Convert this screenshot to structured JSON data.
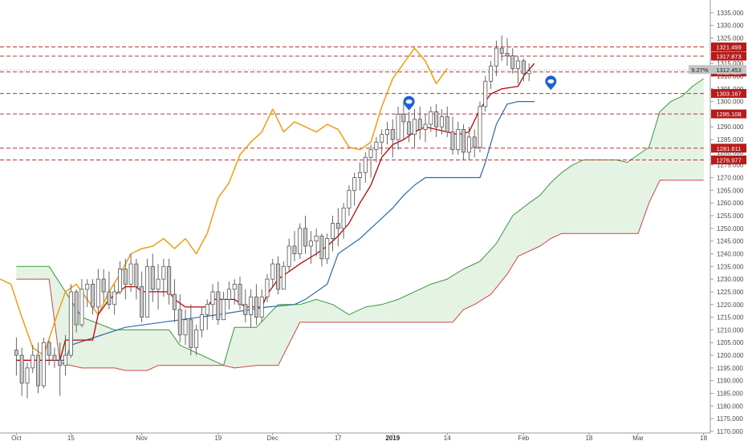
{
  "chart_data": {
    "type": "candlestick",
    "title": "",
    "ylim": [
      1170,
      1340
    ],
    "yticks": [
      1170,
      1175,
      1180,
      1185,
      1190,
      1195,
      1200,
      1205,
      1210,
      1215,
      1220,
      1225,
      1230,
      1235,
      1240,
      1245,
      1250,
      1255,
      1260,
      1265,
      1270,
      1275,
      1280,
      1285,
      1290,
      1295,
      1300,
      1305,
      1310,
      1315,
      1320,
      1325,
      1330,
      1335
    ],
    "ytick_labels": [
      "1170.000",
      "1175.000",
      "1180.000",
      "1185.000",
      "1190.000",
      "1195.000",
      "1200.000",
      "1205.000",
      "1210.000",
      "1215.000",
      "1220.000",
      "1225.000",
      "1230.000",
      "1235.000",
      "1240.000",
      "1245.000",
      "1250.000",
      "1255.000",
      "1260.000",
      "1265.000",
      "1270.000",
      "1275.000",
      "1280.000",
      "1285.000",
      "1290.000",
      "1295.000",
      "1300.000",
      "1305.000",
      "1310.000",
      "1315.000",
      "1320.000",
      "1325.000",
      "1330.000",
      "1335.000"
    ],
    "x_labels": [
      {
        "label": "Oct",
        "index": 0,
        "bold": false
      },
      {
        "label": "15",
        "index": 10,
        "bold": false
      },
      {
        "label": "Nov",
        "index": 23,
        "bold": false
      },
      {
        "label": "19",
        "index": 37,
        "bold": false
      },
      {
        "label": "Dec",
        "index": 47,
        "bold": false
      },
      {
        "label": "17",
        "index": 59,
        "bold": false
      },
      {
        "label": "2019",
        "index": 69,
        "bold": true
      },
      {
        "label": "14",
        "index": 79,
        "bold": false
      },
      {
        "label": "Feb",
        "index": 93,
        "bold": false
      },
      {
        "label": "18",
        "index": 105,
        "bold": false
      },
      {
        "label": "Mar",
        "index": 114,
        "bold": false
      },
      {
        "label": "18",
        "index": 126,
        "bold": false
      }
    ],
    "x_index_range": [
      -3,
      126.5
    ],
    "candles": [
      [
        1202,
        1207,
        1192,
        1200
      ],
      [
        1200,
        1203,
        1184,
        1189
      ],
      [
        1189,
        1197,
        1183,
        1195
      ],
      [
        1195,
        1204,
        1193,
        1200
      ],
      [
        1200,
        1205,
        1185,
        1188
      ],
      [
        1188,
        1207,
        1187,
        1205
      ],
      [
        1205,
        1206,
        1196,
        1200
      ],
      [
        1200,
        1203,
        1195,
        1198
      ],
      [
        1198,
        1205,
        1184,
        1196
      ],
      [
        1196,
        1208,
        1192,
        1200
      ],
      [
        1200,
        1228,
        1199,
        1225
      ],
      [
        1225,
        1226,
        1209,
        1212
      ],
      [
        1212,
        1230,
        1211,
        1226
      ],
      [
        1226,
        1230,
        1219,
        1228
      ],
      [
        1228,
        1230,
        1216,
        1219
      ],
      [
        1219,
        1234,
        1216,
        1230
      ],
      [
        1230,
        1234,
        1221,
        1225
      ],
      [
        1225,
        1233,
        1218,
        1220
      ],
      [
        1220,
        1228,
        1216,
        1225
      ],
      [
        1225,
        1237,
        1224,
        1234
      ],
      [
        1234,
        1238,
        1222,
        1228
      ],
      [
        1228,
        1240,
        1225,
        1236
      ],
      [
        1236,
        1238,
        1222,
        1227
      ],
      [
        1227,
        1233,
        1213,
        1215
      ],
      [
        1215,
        1238,
        1215,
        1235
      ],
      [
        1235,
        1240,
        1221,
        1226
      ],
      [
        1226,
        1236,
        1218,
        1230
      ],
      [
        1230,
        1238,
        1223,
        1235
      ],
      [
        1235,
        1238,
        1220,
        1224
      ],
      [
        1224,
        1230,
        1213,
        1218
      ],
      [
        1218,
        1224,
        1205,
        1208
      ],
      [
        1208,
        1218,
        1204,
        1214
      ],
      [
        1214,
        1220,
        1200,
        1203
      ],
      [
        1203,
        1212,
        1200,
        1210
      ],
      [
        1210,
        1219,
        1207,
        1216
      ],
      [
        1216,
        1222,
        1210,
        1220
      ],
      [
        1220,
        1228,
        1214,
        1225
      ],
      [
        1225,
        1229,
        1212,
        1214
      ],
      [
        1214,
        1225,
        1214,
        1222
      ],
      [
        1222,
        1229,
        1218,
        1226
      ],
      [
        1226,
        1230,
        1220,
        1228
      ],
      [
        1228,
        1231,
        1218,
        1220
      ],
      [
        1220,
        1226,
        1213,
        1216
      ],
      [
        1216,
        1226,
        1211,
        1223
      ],
      [
        1223,
        1228,
        1212,
        1215
      ],
      [
        1215,
        1226,
        1213,
        1223
      ],
      [
        1223,
        1232,
        1221,
        1230
      ],
      [
        1230,
        1238,
        1227,
        1236
      ],
      [
        1236,
        1239,
        1224,
        1226
      ],
      [
        1226,
        1237,
        1226,
        1235
      ],
      [
        1235,
        1246,
        1233,
        1243
      ],
      [
        1243,
        1249,
        1237,
        1240
      ],
      [
        1240,
        1252,
        1238,
        1250
      ],
      [
        1250,
        1255,
        1240,
        1243
      ],
      [
        1243,
        1249,
        1236,
        1245
      ],
      [
        1245,
        1250,
        1239,
        1247
      ],
      [
        1247,
        1248,
        1235,
        1238
      ],
      [
        1238,
        1248,
        1236,
        1246
      ],
      [
        1246,
        1255,
        1241,
        1252
      ],
      [
        1252,
        1258,
        1243,
        1250
      ],
      [
        1250,
        1260,
        1246,
        1258
      ],
      [
        1258,
        1267,
        1255,
        1265
      ],
      [
        1265,
        1272,
        1259,
        1270
      ],
      [
        1270,
        1276,
        1265,
        1272
      ],
      [
        1272,
        1280,
        1268,
        1278
      ],
      [
        1278,
        1283,
        1270,
        1281
      ],
      [
        1281,
        1286,
        1276,
        1284
      ],
      [
        1284,
        1289,
        1279,
        1287
      ],
      [
        1287,
        1292,
        1283,
        1289
      ],
      [
        1289,
        1293,
        1278,
        1285
      ],
      [
        1285,
        1298,
        1281,
        1295
      ],
      [
        1295,
        1300,
        1285,
        1292
      ],
      [
        1292,
        1296,
        1284,
        1287
      ],
      [
        1287,
        1297,
        1282,
        1293
      ],
      [
        1293,
        1298,
        1285,
        1289
      ],
      [
        1289,
        1295,
        1284,
        1291
      ],
      [
        1291,
        1298,
        1288,
        1296
      ],
      [
        1296,
        1299,
        1286,
        1290
      ],
      [
        1290,
        1297,
        1287,
        1294
      ],
      [
        1294,
        1298,
        1286,
        1288
      ],
      [
        1288,
        1294,
        1279,
        1281
      ],
      [
        1281,
        1292,
        1279,
        1289
      ],
      [
        1289,
        1291,
        1277,
        1280
      ],
      [
        1280,
        1290,
        1277,
        1286
      ],
      [
        1286,
        1289,
        1278,
        1282
      ],
      [
        1282,
        1300,
        1280,
        1298
      ],
      [
        1298,
        1310,
        1296,
        1308
      ],
      [
        1308,
        1316,
        1305,
        1314
      ],
      [
        1314,
        1324,
        1310,
        1321
      ],
      [
        1321,
        1326,
        1316,
        1319
      ],
      [
        1319,
        1325,
        1314,
        1318
      ],
      [
        1318,
        1321,
        1311,
        1313
      ],
      [
        1313,
        1318,
        1307,
        1316
      ],
      [
        1316,
        1317,
        1308,
        1311
      ],
      [
        1311,
        1315,
        1308,
        1312
      ]
    ],
    "tenkan": [
      {
        "x": 0,
        "y": 1198
      },
      {
        "x": 8,
        "y": 1198
      },
      {
        "x": 9,
        "y": 1206
      },
      {
        "x": 14,
        "y": 1206
      },
      {
        "x": 15,
        "y": 1216
      },
      {
        "x": 17,
        "y": 1222
      },
      {
        "x": 20,
        "y": 1227
      },
      {
        "x": 22,
        "y": 1227
      },
      {
        "x": 23,
        "y": 1225
      },
      {
        "x": 28,
        "y": 1225
      },
      {
        "x": 29,
        "y": 1222
      },
      {
        "x": 31,
        "y": 1219
      },
      {
        "x": 35,
        "y": 1219
      },
      {
        "x": 36,
        "y": 1222
      },
      {
        "x": 40,
        "y": 1222
      },
      {
        "x": 42,
        "y": 1219
      },
      {
        "x": 45,
        "y": 1219
      },
      {
        "x": 46,
        "y": 1224
      },
      {
        "x": 48,
        "y": 1230
      },
      {
        "x": 50,
        "y": 1233
      },
      {
        "x": 52,
        "y": 1236
      },
      {
        "x": 55,
        "y": 1240
      },
      {
        "x": 57,
        "y": 1243
      },
      {
        "x": 59,
        "y": 1247
      },
      {
        "x": 61,
        "y": 1252
      },
      {
        "x": 63,
        "y": 1260
      },
      {
        "x": 65,
        "y": 1267
      },
      {
        "x": 67,
        "y": 1278
      },
      {
        "x": 69,
        "y": 1283
      },
      {
        "x": 71,
        "y": 1285
      },
      {
        "x": 73,
        "y": 1288
      },
      {
        "x": 75,
        "y": 1290
      },
      {
        "x": 77,
        "y": 1289
      },
      {
        "x": 79,
        "y": 1288
      },
      {
        "x": 81,
        "y": 1287
      },
      {
        "x": 83,
        "y": 1288
      },
      {
        "x": 85,
        "y": 1297
      },
      {
        "x": 87,
        "y": 1303
      },
      {
        "x": 89,
        "y": 1305
      },
      {
        "x": 92,
        "y": 1306
      },
      {
        "x": 93,
        "y": 1310
      },
      {
        "x": 95,
        "y": 1315
      }
    ],
    "kijun": [
      {
        "x": 0,
        "y": 1198
      },
      {
        "x": 9,
        "y": 1198
      },
      {
        "x": 10,
        "y": 1204
      },
      {
        "x": 20,
        "y": 1211
      },
      {
        "x": 37,
        "y": 1216
      },
      {
        "x": 46,
        "y": 1219
      },
      {
        "x": 51,
        "y": 1220
      },
      {
        "x": 53,
        "y": 1222
      },
      {
        "x": 57,
        "y": 1228
      },
      {
        "x": 59,
        "y": 1240
      },
      {
        "x": 61,
        "y": 1243
      },
      {
        "x": 63,
        "y": 1246
      },
      {
        "x": 65,
        "y": 1250
      },
      {
        "x": 67,
        "y": 1254
      },
      {
        "x": 69,
        "y": 1258
      },
      {
        "x": 71,
        "y": 1263
      },
      {
        "x": 73,
        "y": 1267
      },
      {
        "x": 75,
        "y": 1270
      },
      {
        "x": 77,
        "y": 1270
      },
      {
        "x": 85,
        "y": 1270
      },
      {
        "x": 86,
        "y": 1276
      },
      {
        "x": 88,
        "y": 1291
      },
      {
        "x": 90,
        "y": 1299
      },
      {
        "x": 92,
        "y": 1300
      },
      {
        "x": 95,
        "y": 1300
      }
    ],
    "chikou": [
      {
        "x": -3,
        "y": 1230
      },
      {
        "x": -1,
        "y": 1228
      },
      {
        "x": 1,
        "y": 1215
      },
      {
        "x": 3,
        "y": 1203
      },
      {
        "x": 5,
        "y": 1200
      },
      {
        "x": 7,
        "y": 1213
      },
      {
        "x": 9,
        "y": 1225
      },
      {
        "x": 11,
        "y": 1228
      },
      {
        "x": 13,
        "y": 1222
      },
      {
        "x": 15,
        "y": 1216
      },
      {
        "x": 17,
        "y": 1225
      },
      {
        "x": 19,
        "y": 1232
      },
      {
        "x": 21,
        "y": 1240
      },
      {
        "x": 23,
        "y": 1242
      },
      {
        "x": 25,
        "y": 1243
      },
      {
        "x": 27,
        "y": 1246
      },
      {
        "x": 29,
        "y": 1242
      },
      {
        "x": 31,
        "y": 1246
      },
      {
        "x": 33,
        "y": 1240
      },
      {
        "x": 35,
        "y": 1248
      },
      {
        "x": 37,
        "y": 1262
      },
      {
        "x": 39,
        "y": 1268
      },
      {
        "x": 41,
        "y": 1279
      },
      {
        "x": 43,
        "y": 1284
      },
      {
        "x": 45,
        "y": 1288
      },
      {
        "x": 47,
        "y": 1297
      },
      {
        "x": 49,
        "y": 1288
      },
      {
        "x": 51,
        "y": 1292
      },
      {
        "x": 53,
        "y": 1290
      },
      {
        "x": 55,
        "y": 1288
      },
      {
        "x": 57,
        "y": 1291
      },
      {
        "x": 59,
        "y": 1289
      },
      {
        "x": 61,
        "y": 1282
      },
      {
        "x": 63,
        "y": 1281
      },
      {
        "x": 65,
        "y": 1284
      },
      {
        "x": 67,
        "y": 1298
      },
      {
        "x": 69,
        "y": 1309
      },
      {
        "x": 71,
        "y": 1315
      },
      {
        "x": 73,
        "y": 1321
      },
      {
        "x": 75,
        "y": 1316
      },
      {
        "x": 77,
        "y": 1307
      },
      {
        "x": 79,
        "y": 1313
      }
    ],
    "cloud_span_a": [
      {
        "x": 0,
        "y": 1235
      },
      {
        "x": 6,
        "y": 1235
      },
      {
        "x": 12,
        "y": 1215
      },
      {
        "x": 18,
        "y": 1210
      },
      {
        "x": 24,
        "y": 1210
      },
      {
        "x": 28,
        "y": 1210
      },
      {
        "x": 30,
        "y": 1204
      },
      {
        "x": 34,
        "y": 1200
      },
      {
        "x": 38,
        "y": 1196
      },
      {
        "x": 40,
        "y": 1211
      },
      {
        "x": 44,
        "y": 1211
      },
      {
        "x": 48,
        "y": 1220
      },
      {
        "x": 52,
        "y": 1220
      },
      {
        "x": 55,
        "y": 1222
      },
      {
        "x": 58,
        "y": 1220
      },
      {
        "x": 61,
        "y": 1216
      },
      {
        "x": 64,
        "y": 1219
      },
      {
        "x": 67,
        "y": 1220
      },
      {
        "x": 70,
        "y": 1222
      },
      {
        "x": 73,
        "y": 1225
      },
      {
        "x": 76,
        "y": 1228
      },
      {
        "x": 79,
        "y": 1230
      },
      {
        "x": 82,
        "y": 1234
      },
      {
        "x": 85,
        "y": 1237
      },
      {
        "x": 88,
        "y": 1244
      },
      {
        "x": 91,
        "y": 1255
      },
      {
        "x": 94,
        "y": 1260
      },
      {
        "x": 96,
        "y": 1263
      },
      {
        "x": 98,
        "y": 1268
      },
      {
        "x": 100,
        "y": 1272
      },
      {
        "x": 102,
        "y": 1275
      },
      {
        "x": 104,
        "y": 1277
      },
      {
        "x": 110,
        "y": 1277
      },
      {
        "x": 112,
        "y": 1276
      },
      {
        "x": 114,
        "y": 1279
      },
      {
        "x": 116,
        "y": 1282
      },
      {
        "x": 118,
        "y": 1296
      },
      {
        "x": 120,
        "y": 1300
      },
      {
        "x": 122,
        "y": 1302
      },
      {
        "x": 124,
        "y": 1306
      },
      {
        "x": 126,
        "y": 1309
      }
    ],
    "cloud_span_b": [
      {
        "x": 0,
        "y": 1230
      },
      {
        "x": 6,
        "y": 1230
      },
      {
        "x": 8,
        "y": 1197
      },
      {
        "x": 12,
        "y": 1195
      },
      {
        "x": 18,
        "y": 1195
      },
      {
        "x": 20,
        "y": 1194
      },
      {
        "x": 24,
        "y": 1194
      },
      {
        "x": 26,
        "y": 1196
      },
      {
        "x": 38,
        "y": 1196
      },
      {
        "x": 40,
        "y": 1195
      },
      {
        "x": 44,
        "y": 1196
      },
      {
        "x": 48,
        "y": 1196
      },
      {
        "x": 52,
        "y": 1213
      },
      {
        "x": 80,
        "y": 1213
      },
      {
        "x": 82,
        "y": 1218
      },
      {
        "x": 84,
        "y": 1220
      },
      {
        "x": 87,
        "y": 1224
      },
      {
        "x": 90,
        "y": 1232
      },
      {
        "x": 92,
        "y": 1239
      },
      {
        "x": 96,
        "y": 1243
      },
      {
        "x": 98,
        "y": 1246
      },
      {
        "x": 100,
        "y": 1248
      },
      {
        "x": 114,
        "y": 1248
      },
      {
        "x": 116,
        "y": 1260
      },
      {
        "x": 118,
        "y": 1269
      },
      {
        "x": 126,
        "y": 1269
      }
    ],
    "price_levels": [
      {
        "value": 1321.499,
        "label": "1321.499"
      },
      {
        "value": 1317.873,
        "label": "1317.873"
      },
      {
        "value": 1311.628,
        "label": "1311.628"
      },
      {
        "value": 1303.167,
        "label": "1303.167"
      },
      {
        "value": 1295.108,
        "label": "1295.108"
      },
      {
        "value": 1281.611,
        "label": "1281.611"
      },
      {
        "value": 1276.977,
        "label": "1276.977"
      }
    ],
    "current_price": {
      "value": 1312.453,
      "label": "1312.453",
      "change_label": "9.27%"
    },
    "markers": [
      {
        "x": 72,
        "y": 1299,
        "icon": "location-pin-icon"
      },
      {
        "x": 98,
        "y": 1307,
        "icon": "location-pin-icon"
      }
    ],
    "colors": {
      "candle_up": "#ffffff",
      "candle_down": "#c8c8c8",
      "candle_border": "#555555",
      "tenkan": "#c00000",
      "kijun": "#2c6aa8",
      "chikou": "#f39c12",
      "span_a": "#3a9a3a",
      "span_b": "#d04545",
      "cloud_bull": "#e5f3e5",
      "cloud_bear": "#f6dcdc",
      "level_line": "#c03030",
      "level_badge": "#b71c1c",
      "current_badge": "#c4c4c4",
      "marker": "#1e5fd1",
      "axis_text": "#4a4a4a"
    }
  }
}
